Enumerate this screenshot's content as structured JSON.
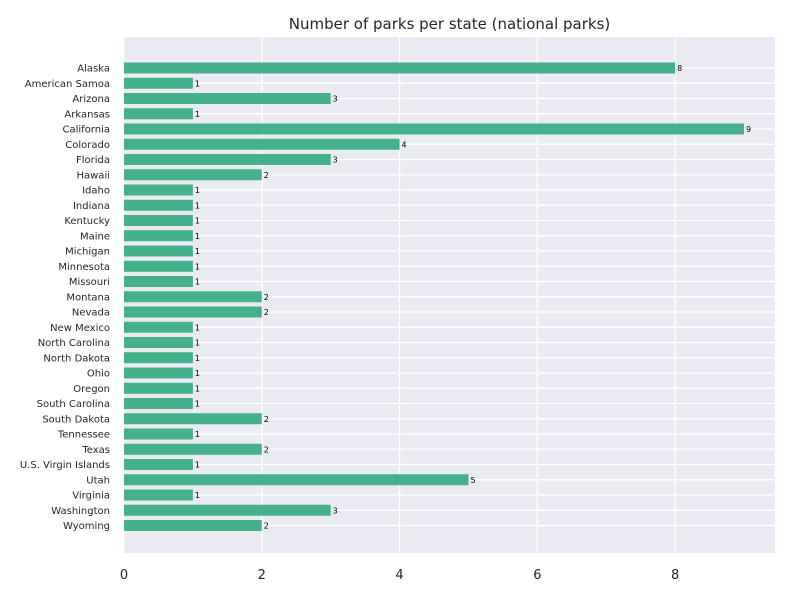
{
  "chart_data": {
    "type": "bar",
    "orientation": "horizontal",
    "title": "Number of parks per state (national parks)",
    "xlabel": "",
    "ylabel": "",
    "categories": [
      "Alaska",
      "American Samoa",
      "Arizona",
      "Arkansas",
      "California",
      "Colorado",
      "Florida",
      "Hawaii",
      "Idaho",
      "Indiana",
      "Kentucky",
      "Maine",
      "Michigan",
      "Minnesota",
      "Missouri",
      "Montana",
      "Nevada",
      "New Mexico",
      "North Carolina",
      "North Dakota",
      "Ohio",
      "Oregon",
      "South Carolina",
      "South Dakota",
      "Tennessee",
      "Texas",
      "U.S. Virgin Islands",
      "Utah",
      "Virginia",
      "Washington",
      "Wyoming"
    ],
    "values": [
      8,
      1,
      3,
      1,
      9,
      4,
      3,
      2,
      1,
      1,
      1,
      1,
      1,
      1,
      1,
      2,
      2,
      1,
      1,
      1,
      1,
      1,
      1,
      2,
      1,
      2,
      1,
      5,
      1,
      3,
      2
    ],
    "xlim": [
      0,
      9.45
    ],
    "xticks": [
      0,
      2,
      4,
      6,
      8
    ],
    "grid": true,
    "colors": {
      "bar": "#45b08c",
      "background": "#eaeaf2",
      "grid": "#ffffff"
    }
  }
}
